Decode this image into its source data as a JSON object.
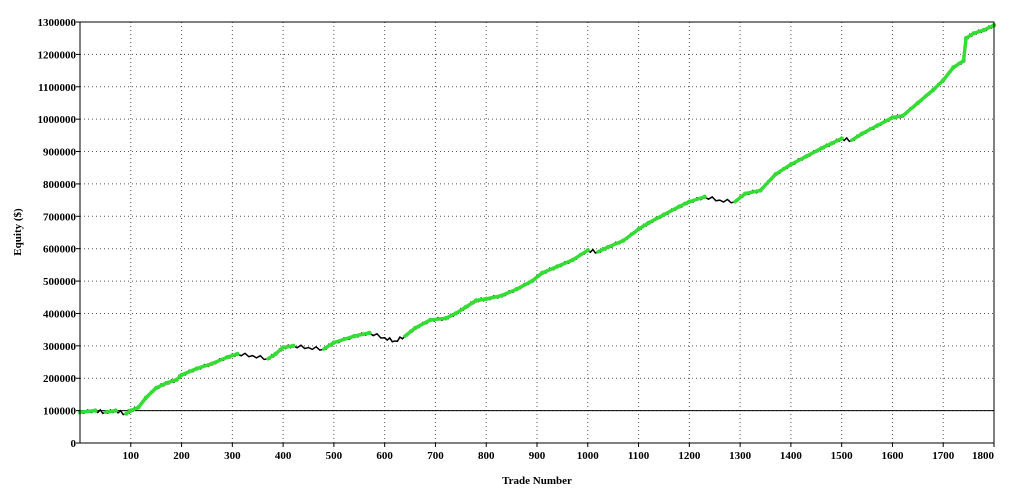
{
  "chart_data": {
    "type": "line",
    "title": "",
    "xlabel": "Trade Number",
    "ylabel": "Equity ($)",
    "xlim": [
      0,
      1800
    ],
    "ylim": [
      0,
      1300000
    ],
    "x_ticks": [
      100,
      200,
      300,
      400,
      500,
      600,
      700,
      800,
      900,
      1000,
      1100,
      1200,
      1300,
      1400,
      1500,
      1600,
      1700,
      1800
    ],
    "y_ticks": [
      0,
      100000,
      200000,
      300000,
      400000,
      500000,
      600000,
      700000,
      800000,
      900000,
      1000000,
      1100000,
      1200000,
      1300000
    ],
    "grid": true,
    "baseline": 100000,
    "colors": {
      "equity_line": "#000000",
      "new_high_marker": "#33dd33",
      "baseline": "#000000",
      "grid": "#555555"
    },
    "series": [
      {
        "x": [
          0,
          30,
          50,
          70,
          90,
          100,
          115,
          130,
          150,
          170,
          190,
          200,
          230,
          260,
          290,
          310,
          340,
          370,
          385,
          400,
          420,
          450,
          480,
          500,
          540,
          570,
          600,
          620,
          640,
          660,
          690,
          720,
          740,
          760,
          780,
          800,
          830,
          860,
          890,
          910,
          940,
          970,
          1000,
          1020,
          1040,
          1070,
          1100,
          1120,
          1150,
          1180,
          1200,
          1230,
          1260,
          1290,
          1310,
          1340,
          1370,
          1400,
          1430,
          1460,
          1480,
          1500,
          1520,
          1540,
          1570,
          1600,
          1620,
          1650,
          1680,
          1700,
          1720,
          1740,
          1745,
          1760,
          1780,
          1800
        ],
        "y": [
          95000,
          100000,
          95000,
          100000,
          90000,
          100000,
          110000,
          140000,
          170000,
          185000,
          195000,
          210000,
          230000,
          245000,
          265000,
          275000,
          270000,
          260000,
          275000,
          295000,
          300000,
          295000,
          290000,
          310000,
          330000,
          340000,
          325000,
          315000,
          330000,
          355000,
          380000,
          385000,
          400000,
          420000,
          440000,
          445000,
          455000,
          475000,
          500000,
          525000,
          545000,
          565000,
          595000,
          590000,
          605000,
          625000,
          660000,
          680000,
          705000,
          730000,
          745000,
          760000,
          750000,
          745000,
          770000,
          780000,
          830000,
          860000,
          885000,
          910000,
          925000,
          940000,
          935000,
          955000,
          980000,
          1005000,
          1010000,
          1050000,
          1090000,
          1120000,
          1160000,
          1180000,
          1250000,
          1265000,
          1275000,
          1290000
        ]
      }
    ]
  }
}
